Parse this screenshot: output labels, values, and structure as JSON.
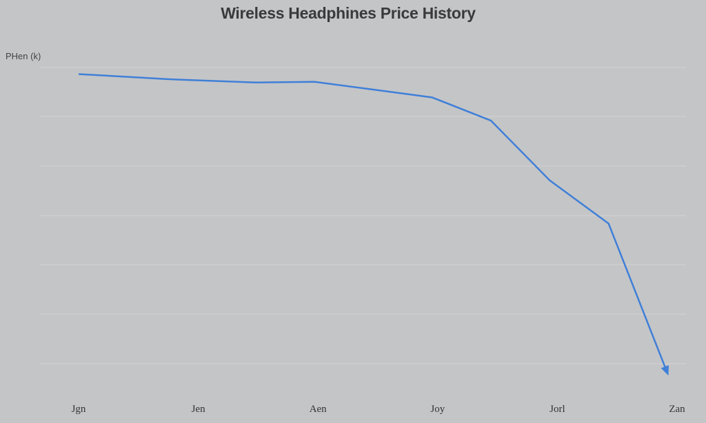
{
  "chart_data": {
    "type": "line",
    "title": "Wireless Headphines Price History",
    "ylabel": "PHen (k)",
    "xlabel": "",
    "x_ticks": [
      "Jgn",
      "Jen",
      "Aen",
      "Joy",
      "Jorl",
      "Zan"
    ],
    "ylim": [
      0,
      100
    ],
    "xlim": [
      0,
      10
    ],
    "grid": true,
    "legend": "none",
    "colors": {
      "line": "#3f7fd8",
      "background": "#c4c5c7",
      "grid": "#d3d4d6"
    },
    "series": [
      {
        "x": [
          0,
          1.5,
          3,
          4,
          6,
          7,
          8,
          9,
          10
        ],
        "y": [
          98,
          96.5,
          95.5,
          95.7,
          91,
          84,
          66,
          53,
          8
        ]
      }
    ]
  }
}
